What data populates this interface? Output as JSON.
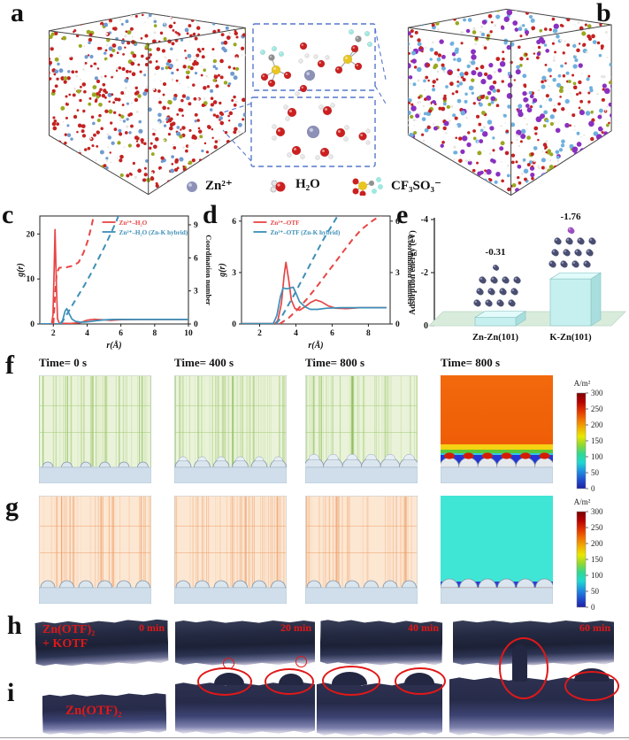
{
  "labels": {
    "a": "a",
    "b": "b",
    "c": "c",
    "d": "d",
    "e": "e",
    "f": "f",
    "g": "g",
    "h": "h",
    "i": "i"
  },
  "legend": {
    "zn": "Zn²⁺",
    "h2o": "H₂O",
    "otf": "CF₃SO₃⁻"
  },
  "chart_data": [
    {
      "type": "line",
      "panel": "c",
      "xlabel": "r(Å)",
      "ylabel_left": "g(r)",
      "ylabel_right": "Coordination number",
      "xlim": [
        1.2,
        10
      ],
      "ylim_left": [
        0,
        24
      ],
      "ylim_right": [
        0,
        9.8
      ],
      "x_ticks": [
        2,
        4,
        6,
        8,
        10
      ],
      "y_ticks_left": [
        0,
        10,
        20
      ],
      "y_ticks_right": [
        0,
        3,
        6,
        9
      ],
      "series": [
        {
          "name": "Zn²⁺–H₂O",
          "color": "#e84545",
          "style": "solid",
          "axis": "left",
          "legend": true,
          "points": [
            [
              1.2,
              0.02
            ],
            [
              1.9,
              0.02
            ],
            [
              1.98,
              2
            ],
            [
              2.05,
              12
            ],
            [
              2.1,
              21
            ],
            [
              2.18,
              9
            ],
            [
              2.25,
              1.2
            ],
            [
              2.35,
              0.15
            ],
            [
              3.0,
              0.1
            ],
            [
              3.6,
              0.3
            ],
            [
              4.0,
              0.85
            ],
            [
              4.4,
              1.05
            ],
            [
              4.9,
              0.95
            ],
            [
              5.4,
              0.8
            ],
            [
              6.0,
              0.95
            ],
            [
              7.0,
              1.0
            ],
            [
              8.0,
              1.0
            ],
            [
              9.0,
              1.0
            ],
            [
              10,
              1.0
            ]
          ]
        },
        {
          "name": "Zn²⁺–H₂O (Zn-K hybrid)",
          "color": "#3d8fb8",
          "style": "solid",
          "axis": "left",
          "legend": true,
          "points": [
            [
              1.2,
              0.02
            ],
            [
              2.4,
              0.02
            ],
            [
              2.55,
              0.8
            ],
            [
              2.7,
              2.9
            ],
            [
              2.8,
              3.4
            ],
            [
              2.95,
              2.2
            ],
            [
              3.1,
              1.1
            ],
            [
              3.3,
              0.6
            ],
            [
              3.6,
              0.4
            ],
            [
              4.0,
              0.45
            ],
            [
              4.5,
              0.7
            ],
            [
              5.0,
              0.9
            ],
            [
              5.5,
              1.0
            ],
            [
              6.5,
              1.0
            ],
            [
              8,
              1.0
            ],
            [
              10,
              1.0
            ]
          ]
        },
        {
          "name": "CN Zn²⁺–H₂O",
          "color": "#e84545",
          "style": "dashed",
          "axis": "right",
          "legend": false,
          "points": [
            [
              2.0,
              0
            ],
            [
              2.1,
              2.5
            ],
            [
              2.2,
              4.6
            ],
            [
              2.35,
              5.1
            ],
            [
              2.8,
              5.15
            ],
            [
              3.2,
              5.3
            ],
            [
              3.5,
              5.6
            ],
            [
              3.8,
              6.5
            ],
            [
              4.05,
              7.6
            ],
            [
              4.25,
              8.8
            ],
            [
              4.45,
              10.2
            ]
          ]
        },
        {
          "name": "CN Zn²⁺–H₂O (Zn-K hybrid)",
          "color": "#3d8fb8",
          "style": "dashed",
          "axis": "right",
          "legend": false,
          "points": [
            [
              2.45,
              0
            ],
            [
              2.7,
              0.6
            ],
            [
              3.0,
              1.4
            ],
            [
              3.4,
              2.4
            ],
            [
              3.8,
              3.4
            ],
            [
              4.2,
              4.5
            ],
            [
              4.6,
              5.7
            ],
            [
              5.0,
              6.9
            ],
            [
              5.4,
              8.2
            ],
            [
              5.75,
              9.4
            ],
            [
              5.95,
              10.2
            ]
          ]
        }
      ]
    },
    {
      "type": "line",
      "panel": "d",
      "xlabel": "r(Å)",
      "ylabel_left": "g(r)",
      "ylabel_right": "Coordination number",
      "xlim": [
        1,
        9.2
      ],
      "ylim_left": [
        0,
        6.3
      ],
      "ylim_right": [
        0,
        6.3
      ],
      "x_ticks": [
        2,
        4,
        6,
        8
      ],
      "y_ticks_left": [
        0,
        3,
        6
      ],
      "y_ticks_right": [
        0,
        3,
        6
      ],
      "series": [
        {
          "name": "Zn²⁺–OTF",
          "color": "#e84545",
          "style": "solid",
          "axis": "left",
          "legend": true,
          "points": [
            [
              1,
              0.02
            ],
            [
              2.85,
              0.02
            ],
            [
              3.0,
              0.2
            ],
            [
              3.2,
              1.2
            ],
            [
              3.35,
              2.8
            ],
            [
              3.45,
              3.6
            ],
            [
              3.6,
              2.6
            ],
            [
              3.75,
              1.4
            ],
            [
              3.95,
              0.9
            ],
            [
              4.2,
              0.8
            ],
            [
              4.5,
              1.0
            ],
            [
              4.8,
              1.25
            ],
            [
              5.1,
              1.4
            ],
            [
              5.4,
              1.3
            ],
            [
              5.8,
              1.05
            ],
            [
              6.2,
              0.92
            ],
            [
              6.8,
              0.9
            ],
            [
              7.5,
              0.95
            ],
            [
              8.2,
              0.95
            ],
            [
              9,
              0.95
            ]
          ]
        },
        {
          "name": "Zn²⁺–OTF (Zn-K hybrid)",
          "color": "#3d8fb8",
          "style": "solid",
          "axis": "left",
          "legend": true,
          "points": [
            [
              1,
              0.02
            ],
            [
              2.75,
              0.02
            ],
            [
              2.95,
              0.5
            ],
            [
              3.15,
              1.6
            ],
            [
              3.3,
              2.1
            ],
            [
              3.5,
              2.05
            ],
            [
              3.7,
              2.1
            ],
            [
              3.85,
              2.15
            ],
            [
              4.0,
              1.8
            ],
            [
              4.2,
              1.3
            ],
            [
              4.5,
              1.0
            ],
            [
              4.8,
              0.85
            ],
            [
              5.2,
              0.85
            ],
            [
              5.7,
              0.92
            ],
            [
              6.5,
              0.95
            ],
            [
              7.5,
              0.95
            ],
            [
              9,
              0.95
            ]
          ]
        },
        {
          "name": "CN Zn²⁺–OTF",
          "color": "#e84545",
          "style": "dashed",
          "axis": "right",
          "legend": false,
          "points": [
            [
              3.1,
              0
            ],
            [
              3.6,
              0.35
            ],
            [
              4.1,
              0.85
            ],
            [
              4.6,
              1.45
            ],
            [
              5.1,
              2.1
            ],
            [
              5.6,
              2.8
            ],
            [
              6.1,
              3.5
            ],
            [
              6.6,
              4.2
            ],
            [
              7.1,
              4.9
            ],
            [
              7.6,
              5.5
            ],
            [
              8.2,
              6.0
            ],
            [
              8.7,
              6.35
            ]
          ]
        },
        {
          "name": "CN Zn²⁺–OTF (Zn-K hybrid)",
          "color": "#3d8fb8",
          "style": "dashed",
          "axis": "right",
          "legend": false,
          "points": [
            [
              2.9,
              0
            ],
            [
              3.2,
              0.4
            ],
            [
              3.5,
              0.95
            ],
            [
              3.9,
              1.7
            ],
            [
              4.3,
              2.5
            ],
            [
              4.7,
              3.3
            ],
            [
              5.1,
              4.1
            ],
            [
              5.5,
              4.9
            ],
            [
              5.9,
              5.6
            ],
            [
              6.3,
              6.3
            ],
            [
              6.5,
              6.6
            ]
          ]
        }
      ]
    },
    {
      "type": "bar",
      "panel": "e",
      "categories": [
        "Zn-Zn(101)",
        "K-Zn(101)"
      ],
      "values": [
        -0.31,
        -1.76
      ],
      "bar_labels": [
        "-0.31",
        "-1.76"
      ],
      "ylabel": "Adsorption energy (eV)",
      "y_ticks": [
        "0",
        "-2",
        "-4"
      ],
      "ylim": [
        0,
        -4
      ]
    }
  ],
  "colorbar": {
    "title": "A/m²",
    "ticks": [
      "300",
      "250",
      "200",
      "150",
      "100",
      "50",
      "0"
    ]
  },
  "panel_f": {
    "times": [
      "Time= 0 s",
      "Time= 400 s",
      "Time= 800 s",
      "Time= 800 s"
    ]
  },
  "panel_h": {
    "sample_line1": "Zn(OTF)₂",
    "sample_line2": "+ KOTF",
    "times": [
      "0 min",
      "20 min",
      "40 min",
      "60 min"
    ]
  },
  "panel_i": {
    "sample": "Zn(OTF)₂"
  }
}
